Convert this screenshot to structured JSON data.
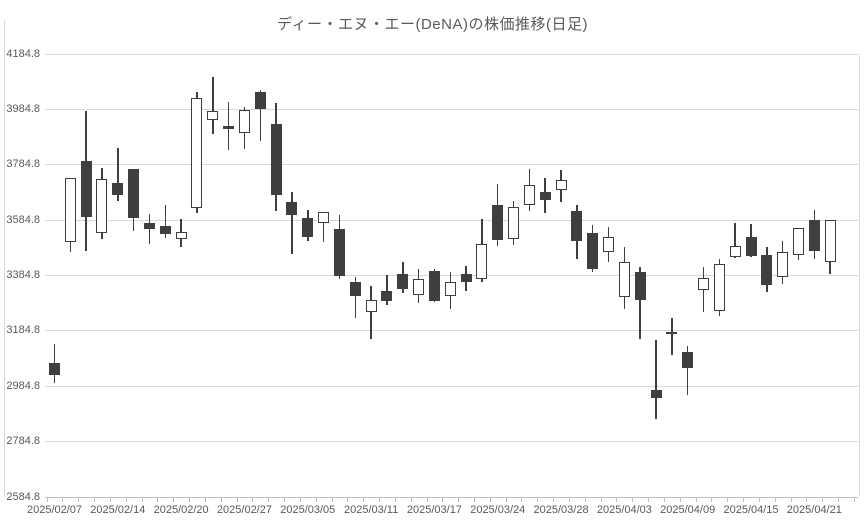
{
  "title": "ディー・エヌ・エー(DeNA)の株価推移(日足)",
  "colors": {
    "text": "#595959",
    "gridline": "#d9d9d9",
    "axis": "#bfbfbf",
    "candle_down_fill": "#3f3f3f",
    "candle_up_fill": "#ffffff",
    "candle_border": "#3f3f3f",
    "background": "#ffffff"
  },
  "chart_data": {
    "type": "candlestick",
    "title": "ディー・エヌ・エー(DeNA)の株価推移(日足)",
    "xlabel": "",
    "ylabel": "",
    "ylim": [
      2584.8,
      4184.8
    ],
    "ytick_step": 200,
    "grid": "horizontal",
    "legend": "none",
    "yticks": [
      "4184.8",
      "3984.8",
      "3784.8",
      "3584.8",
      "3384.8",
      "3184.8",
      "2984.8",
      "2784.8",
      "2584.8"
    ],
    "xtick_labels": [
      "2025/02/07",
      "2025/02/14",
      "2025/02/20",
      "2025/02/27",
      "2025/03/05",
      "2025/03/11",
      "2025/03/17",
      "2025/03/24",
      "2025/03/28",
      "2025/04/03",
      "2025/04/09",
      "2025/04/15",
      "2025/04/21"
    ],
    "xtick_indices": [
      0,
      4,
      8,
      12,
      16,
      20,
      24,
      28,
      32,
      36,
      40,
      44,
      48
    ],
    "dates": [
      "2025/02/07",
      "2025/02/10",
      "2025/02/12",
      "2025/02/13",
      "2025/02/14",
      "2025/02/17",
      "2025/02/18",
      "2025/02/19",
      "2025/02/20",
      "2025/02/21",
      "2025/02/25",
      "2025/02/26",
      "2025/02/27",
      "2025/02/28",
      "2025/03/03",
      "2025/03/04",
      "2025/03/05",
      "2025/03/06",
      "2025/03/07",
      "2025/03/10",
      "2025/03/11",
      "2025/03/12",
      "2025/03/13",
      "2025/03/14",
      "2025/03/17",
      "2025/03/18",
      "2025/03/19",
      "2025/03/21",
      "2025/03/24",
      "2025/03/25",
      "2025/03/26",
      "2025/03/27",
      "2025/03/28",
      "2025/03/31",
      "2025/04/01",
      "2025/04/02",
      "2025/04/03",
      "2025/04/04",
      "2025/04/07",
      "2025/04/08",
      "2025/04/09",
      "2025/04/10",
      "2025/04/11",
      "2025/04/14",
      "2025/04/15",
      "2025/04/16",
      "2025/04/17",
      "2025/04/18",
      "2025/04/21",
      "2025/04/22"
    ],
    "ohlc_comment": "arrays are [open, high, low, close] in yen, estimated from plot",
    "ohlc": [
      [
        3067,
        3139,
        2998,
        3025
      ],
      [
        3504,
        3736,
        3468,
        3736
      ],
      [
        3797,
        3979,
        3474,
        3597
      ],
      [
        3540,
        3773,
        3518,
        3734
      ],
      [
        3719,
        3845,
        3653,
        3677
      ],
      [
        3770,
        3770,
        3546,
        3594
      ],
      [
        3573,
        3608,
        3498,
        3554
      ],
      [
        3564,
        3638,
        3522,
        3534
      ],
      [
        3518,
        3588,
        3486,
        3542
      ],
      [
        3627,
        4046,
        3609,
        4026
      ],
      [
        3946,
        4100,
        3896,
        3980
      ],
      [
        3925,
        4012,
        3839,
        3913
      ],
      [
        3901,
        3994,
        3841,
        3982
      ],
      [
        4048,
        4056,
        3872,
        3985
      ],
      [
        3932,
        4009,
        3617,
        3674
      ],
      [
        3650,
        3686,
        3462,
        3602
      ],
      [
        3594,
        3621,
        3510,
        3522
      ],
      [
        3576,
        3614,
        3506,
        3614
      ],
      [
        3554,
        3605,
        3372,
        3384
      ],
      [
        3362,
        3378,
        3231,
        3312
      ],
      [
        3252,
        3348,
        3157,
        3298
      ],
      [
        3330,
        3386,
        3279,
        3294
      ],
      [
        3392,
        3432,
        3322,
        3336
      ],
      [
        3315,
        3408,
        3286,
        3372
      ],
      [
        3402,
        3410,
        3290,
        3294
      ],
      [
        3312,
        3398,
        3264,
        3360
      ],
      [
        3392,
        3420,
        3330,
        3360
      ],
      [
        3372,
        3590,
        3362,
        3498
      ],
      [
        3638,
        3716,
        3492,
        3513
      ],
      [
        3516,
        3653,
        3494,
        3633
      ],
      [
        3638,
        3770,
        3617,
        3713
      ],
      [
        3686,
        3737,
        3611,
        3656
      ],
      [
        3692,
        3767,
        3650,
        3728
      ],
      [
        3617,
        3641,
        3444,
        3510
      ],
      [
        3537,
        3566,
        3396,
        3410
      ],
      [
        3468,
        3561,
        3432,
        3523
      ],
      [
        3307,
        3489,
        3264,
        3435
      ],
      [
        3399,
        3415,
        3154,
        3298
      ],
      [
        2973,
        3152,
        2865,
        2941
      ],
      [
        3180,
        3232,
        3097,
        3174
      ],
      [
        3109,
        3130,
        2953,
        3052
      ],
      [
        3334,
        3415,
        3252,
        3376
      ],
      [
        3256,
        3444,
        3240,
        3427
      ],
      [
        3451,
        3575,
        3447,
        3490
      ],
      [
        3525,
        3571,
        3450,
        3456
      ],
      [
        3459,
        3487,
        3324,
        3352
      ],
      [
        3379,
        3511,
        3355,
        3468
      ],
      [
        3459,
        3555,
        3439,
        3555
      ],
      [
        3587,
        3623,
        3444,
        3475
      ],
      [
        3432,
        3587,
        3391,
        3587
      ]
    ]
  }
}
